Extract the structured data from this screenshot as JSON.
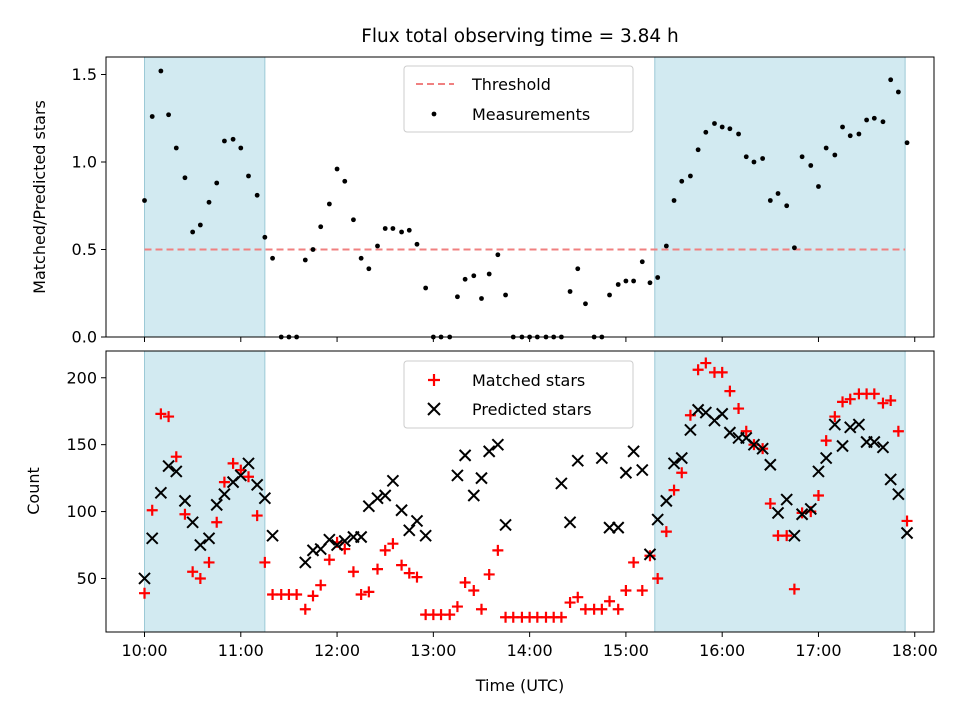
{
  "title": "Flux total observing time = 3.84 h",
  "x_axis": {
    "label": "Time (UTC)",
    "range": [
      9.6,
      18.2
    ],
    "ticks": [
      {
        "value": 10,
        "label": "10:00"
      },
      {
        "value": 11,
        "label": "11:00"
      },
      {
        "value": 12,
        "label": "12:00"
      },
      {
        "value": 13,
        "label": "13:00"
      },
      {
        "value": 14,
        "label": "14:00"
      },
      {
        "value": 15,
        "label": "15:00"
      },
      {
        "value": 16,
        "label": "16:00"
      },
      {
        "value": 17,
        "label": "17:00"
      },
      {
        "value": 18,
        "label": "18:00"
      }
    ]
  },
  "shaded_spans": [
    [
      10.0,
      11.25
    ],
    [
      15.3,
      17.9
    ]
  ],
  "shade_color": "#add8e6",
  "chart_data": [
    {
      "type": "scatter",
      "ylabel": "Matched/Predicted stars",
      "ylim": [
        0,
        1.6
      ],
      "yticks": [
        0.0,
        0.5,
        1.0,
        1.5
      ],
      "ytick_labels": [
        "0.0",
        "0.5",
        "1.0",
        "1.5"
      ],
      "legend_position": "top-center",
      "threshold": {
        "name": "Threshold",
        "value": 0.5,
        "color": "#f08080"
      },
      "series": [
        {
          "name": "Measurements",
          "color": "#000000",
          "marker": "dot",
          "x": [
            10.0,
            10.08,
            10.17,
            10.25,
            10.33,
            10.42,
            10.5,
            10.58,
            10.67,
            10.75,
            10.83,
            10.92,
            11.0,
            11.08,
            11.17,
            11.25,
            11.33,
            11.42,
            11.5,
            11.58,
            11.67,
            11.75,
            11.83,
            11.92,
            12.0,
            12.08,
            12.17,
            12.25,
            12.33,
            12.42,
            12.5,
            12.58,
            12.67,
            12.75,
            12.83,
            12.92,
            13.0,
            13.08,
            13.17,
            13.25,
            13.33,
            13.42,
            13.5,
            13.58,
            13.67,
            13.75,
            13.83,
            13.92,
            14.0,
            14.08,
            14.17,
            14.25,
            14.33,
            14.42,
            14.5,
            14.58,
            14.67,
            14.75,
            14.83,
            14.92,
            15.0,
            15.08,
            15.17,
            15.25,
            15.33,
            15.42,
            15.5,
            15.58,
            15.67,
            15.75,
            15.83,
            15.92,
            16.0,
            16.08,
            16.17,
            16.25,
            16.33,
            16.42,
            16.5,
            16.58,
            16.67,
            16.75,
            16.83,
            16.92,
            17.0,
            17.08,
            17.17,
            17.25,
            17.33,
            17.42,
            17.5,
            17.58,
            17.67,
            17.75,
            17.83,
            17.92
          ],
          "y": [
            0.78,
            1.26,
            1.52,
            1.27,
            1.08,
            0.91,
            0.6,
            0.64,
            0.77,
            0.88,
            1.12,
            1.13,
            1.08,
            0.92,
            0.81,
            0.57,
            0.45,
            0.0,
            0.0,
            0.0,
            0.44,
            0.5,
            0.63,
            0.76,
            0.96,
            0.89,
            0.67,
            0.45,
            0.39,
            0.52,
            0.62,
            0.62,
            0.6,
            0.61,
            0.53,
            0.28,
            0.0,
            0.0,
            0.0,
            0.23,
            0.33,
            0.35,
            0.22,
            0.36,
            0.47,
            0.24,
            0.0,
            0.0,
            0.0,
            0.0,
            0.0,
            0.0,
            0.0,
            0.26,
            0.39,
            0.19,
            0.0,
            0.0,
            0.24,
            0.3,
            0.32,
            0.32,
            0.43,
            0.31,
            0.34,
            0.52,
            0.78,
            0.89,
            0.92,
            1.07,
            1.17,
            1.22,
            1.2,
            1.19,
            1.16,
            1.03,
            1.0,
            1.02,
            0.78,
            0.82,
            0.75,
            0.51,
            1.03,
            0.98,
            0.86,
            1.08,
            1.04,
            1.2,
            1.15,
            1.16,
            1.24,
            1.25,
            1.23,
            1.47,
            1.4,
            1.11
          ]
        }
      ]
    },
    {
      "type": "scatter",
      "ylabel": "Count",
      "ylim": [
        10,
        220
      ],
      "yticks": [
        50,
        100,
        150,
        200
      ],
      "ytick_labels": [
        "50",
        "100",
        "150",
        "200"
      ],
      "legend_position": "top-center",
      "series": [
        {
          "name": "Matched stars",
          "color": "#ff0000",
          "marker": "plus",
          "x": [
            10.0,
            10.08,
            10.17,
            10.25,
            10.33,
            10.42,
            10.5,
            10.58,
            10.67,
            10.75,
            10.83,
            10.92,
            11.0,
            11.08,
            11.17,
            11.25,
            11.33,
            11.42,
            11.5,
            11.58,
            11.67,
            11.75,
            11.83,
            11.92,
            12.0,
            12.08,
            12.17,
            12.25,
            12.33,
            12.42,
            12.5,
            12.58,
            12.67,
            12.75,
            12.83,
            12.92,
            13.0,
            13.08,
            13.17,
            13.25,
            13.33,
            13.42,
            13.5,
            13.58,
            13.67,
            13.75,
            13.83,
            13.92,
            14.0,
            14.08,
            14.17,
            14.25,
            14.33,
            14.42,
            14.5,
            14.58,
            14.67,
            14.75,
            14.83,
            14.92,
            15.0,
            15.08,
            15.17,
            15.25,
            15.33,
            15.42,
            15.5,
            15.58,
            15.67,
            15.75,
            15.83,
            15.92,
            16.0,
            16.08,
            16.17,
            16.25,
            16.33,
            16.42,
            16.5,
            16.58,
            16.67,
            16.75,
            16.83,
            16.92,
            17.0,
            17.08,
            17.17,
            17.25,
            17.33,
            17.42,
            17.5,
            17.58,
            17.67,
            17.75,
            17.83,
            17.92
          ],
          "y": [
            39,
            101,
            173,
            171,
            141,
            98,
            55,
            50,
            62,
            92,
            122,
            136,
            131,
            126,
            97,
            62,
            38,
            38,
            38,
            38,
            27,
            37,
            45,
            64,
            77,
            72,
            55,
            38,
            40,
            57,
            71,
            76,
            60,
            54,
            51,
            23,
            23,
            23,
            23,
            29,
            47,
            41,
            27,
            53,
            71,
            21,
            21,
            21,
            21,
            21,
            21,
            21,
            21,
            32,
            36,
            27,
            27,
            27,
            33,
            27,
            41,
            62,
            41,
            67,
            50,
            85,
            116,
            129,
            172,
            206,
            211,
            204,
            204,
            190,
            177,
            160,
            150,
            147,
            106,
            82,
            82,
            42,
            99,
            100,
            112,
            153,
            171,
            182,
            184,
            188,
            188,
            188,
            181,
            183,
            160,
            93
          ]
        },
        {
          "name": "Predicted stars",
          "color": "#000000",
          "marker": "cross",
          "x": [
            10.0,
            10.08,
            10.17,
            10.25,
            10.33,
            10.42,
            10.5,
            10.58,
            10.67,
            10.75,
            10.83,
            10.92,
            11.0,
            11.08,
            11.17,
            11.25,
            11.33,
            11.67,
            11.75,
            11.83,
            11.92,
            12.0,
            12.08,
            12.17,
            12.25,
            12.33,
            12.42,
            12.5,
            12.58,
            12.67,
            12.75,
            12.83,
            12.92,
            13.25,
            13.33,
            13.42,
            13.5,
            13.58,
            13.67,
            13.75,
            14.33,
            14.42,
            14.5,
            14.75,
            14.83,
            14.92,
            15.0,
            15.08,
            15.17,
            15.25,
            15.33,
            15.42,
            15.5,
            15.58,
            15.67,
            15.75,
            15.83,
            15.92,
            16.0,
            16.08,
            16.17,
            16.25,
            16.33,
            16.42,
            16.5,
            16.58,
            16.67,
            16.75,
            16.83,
            16.92,
            17.0,
            17.08,
            17.17,
            17.25,
            17.33,
            17.42,
            17.5,
            17.58,
            17.67,
            17.75,
            17.83,
            17.92
          ],
          "y": [
            50,
            80,
            114,
            134,
            130,
            108,
            92,
            75,
            80,
            105,
            113,
            122,
            127,
            136,
            120,
            110,
            82,
            62,
            71,
            72,
            79,
            75,
            78,
            81,
            81,
            104,
            110,
            112,
            123,
            101,
            86,
            93,
            82,
            127,
            142,
            112,
            125,
            145,
            150,
            90,
            121,
            92,
            138,
            140,
            88,
            88,
            129,
            145,
            131,
            68,
            94,
            108,
            136,
            140,
            161,
            176,
            174,
            168,
            173,
            159,
            155,
            155,
            150,
            147,
            135,
            99,
            109,
            82,
            98,
            102,
            130,
            140,
            165,
            149,
            163,
            165,
            152,
            152,
            148,
            124,
            113,
            84
          ]
        }
      ]
    }
  ]
}
